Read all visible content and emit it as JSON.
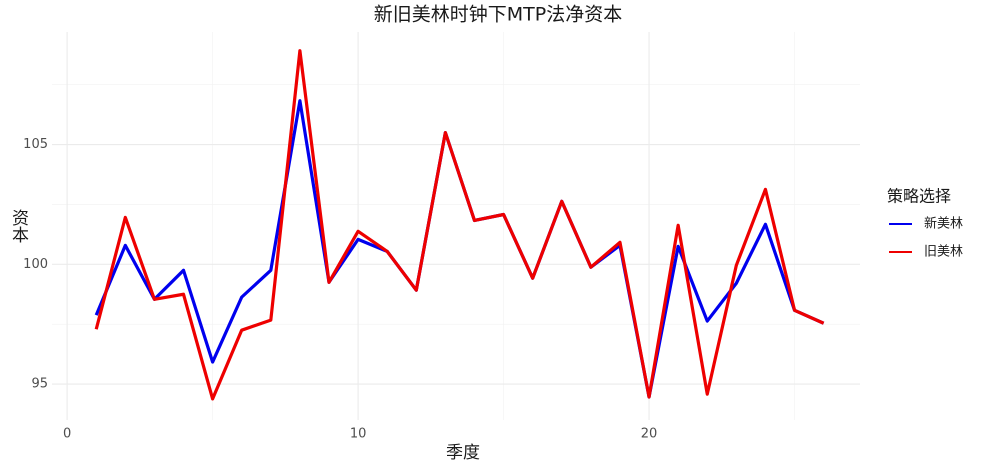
{
  "chart_data": {
    "type": "line",
    "title": "新旧美林时钟下MTP法净资本",
    "x_label": "季度",
    "y_label": "资本",
    "x": [
      1,
      2,
      3,
      4,
      5,
      6,
      7,
      8,
      9,
      10,
      11,
      12,
      13,
      14,
      15,
      16,
      17,
      18,
      19,
      20,
      21,
      22,
      23,
      24,
      25,
      26
    ],
    "series": [
      {
        "name": "新美林",
        "color": "#0000ee",
        "values": [
          97.88,
          100.79,
          98.54,
          99.75,
          95.92,
          98.63,
          99.75,
          106.83,
          99.25,
          101.04,
          100.54,
          98.92,
          105.5,
          101.83,
          102.08,
          99.42,
          102.63,
          99.88,
          100.79,
          94.46,
          100.75,
          97.63,
          99.21,
          101.67,
          98.08,
          97.54
        ]
      },
      {
        "name": "旧美林",
        "color": "#ee0000",
        "values": [
          97.29,
          101.96,
          98.54,
          98.75,
          94.38,
          97.25,
          97.67,
          108.92,
          99.25,
          101.38,
          100.54,
          98.92,
          105.5,
          101.83,
          102.08,
          99.42,
          102.63,
          99.88,
          100.92,
          94.46,
          101.63,
          94.58,
          99.96,
          103.13,
          98.08,
          97.54
        ]
      }
    ],
    "xlim": [
      -0.52,
      27.25
    ],
    "xticks": [
      0,
      10,
      20
    ],
    "x_minor_ticks": [
      5,
      15,
      25
    ],
    "ylim": [
      93.5,
      109.7
    ],
    "yticks": [
      95,
      100,
      105
    ],
    "y_minor_ticks": [
      97.5,
      102.5,
      107.5
    ],
    "grid": true,
    "legend_title": "策略选择",
    "legend_position": "right"
  }
}
